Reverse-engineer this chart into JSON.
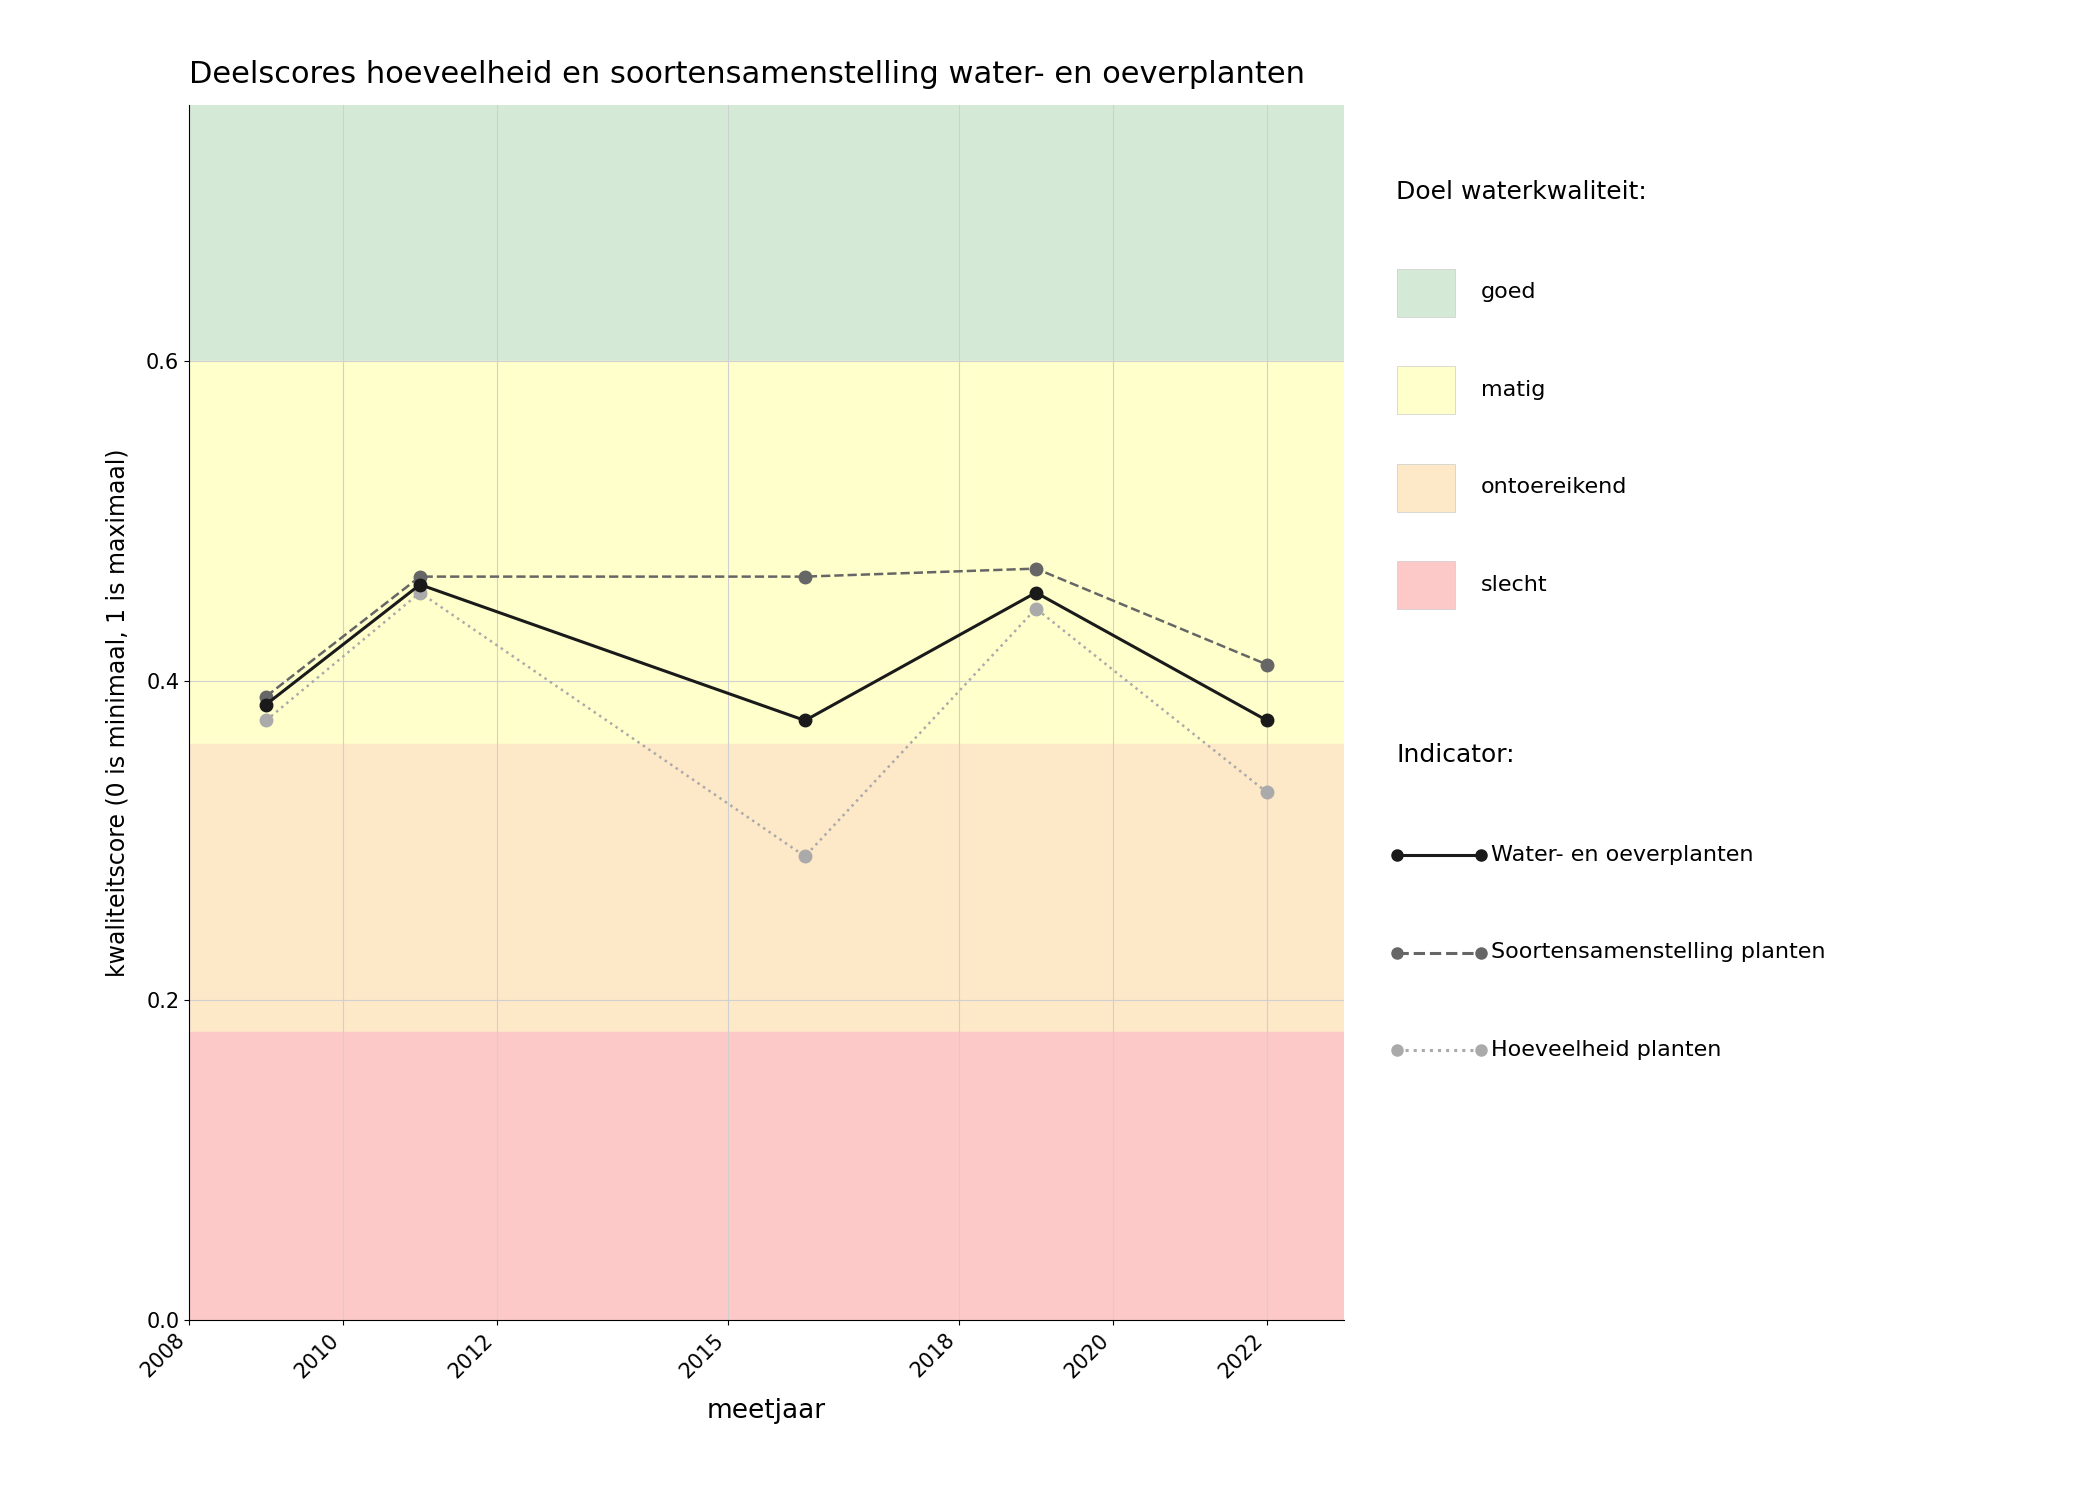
{
  "title": "Deelscores hoeveelheid en soortensamenstelling water- en oeverplanten",
  "xlabel": "meetjaar",
  "ylabel": "kwaliteitscore (0 is minimaal, 1 is maximaal)",
  "xlim": [
    2008,
    2023
  ],
  "ylim": [
    0.0,
    0.76
  ],
  "xticks": [
    2008,
    2010,
    2012,
    2015,
    2018,
    2020,
    2022
  ],
  "yticks": [
    0.0,
    0.2,
    0.4,
    0.6
  ],
  "bg_colors": {
    "goed": "#d5ead6",
    "matig": "#ffffcc",
    "ontoereikend": "#fde8c8",
    "slecht": "#fcc8c8"
  },
  "bg_ranges": {
    "goed": [
      0.6,
      0.76
    ],
    "matig": [
      0.36,
      0.6
    ],
    "ontoereikend": [
      0.18,
      0.36
    ],
    "slecht": [
      0.0,
      0.18
    ]
  },
  "water_oeverplanten": {
    "years": [
      2009,
      2011,
      2016,
      2019,
      2022
    ],
    "values": [
      0.385,
      0.46,
      0.375,
      0.455,
      0.375
    ],
    "color": "#1a1a1a",
    "linestyle": "solid",
    "linewidth": 2.2,
    "markersize": 9
  },
  "soortensamenstelling": {
    "years": [
      2009,
      2011,
      2016,
      2019,
      2022
    ],
    "values": [
      0.39,
      0.465,
      0.465,
      0.47,
      0.41
    ],
    "color": "#666666",
    "linestyle": "dashed",
    "linewidth": 1.8,
    "markersize": 9
  },
  "hoeveelheid": {
    "years": [
      2009,
      2011,
      2016,
      2019,
      2022
    ],
    "values": [
      0.375,
      0.455,
      0.29,
      0.445,
      0.33
    ],
    "color": "#aaaaaa",
    "linestyle": "dotted",
    "linewidth": 1.8,
    "markersize": 9
  },
  "legend_doel_title": "Doel waterkwaliteit:",
  "legend_indicator_title": "Indicator:",
  "legend_items_doel": [
    {
      "label": "goed",
      "color": "#d5ead6"
    },
    {
      "label": "matig",
      "color": "#ffffcc"
    },
    {
      "label": "ontoereikend",
      "color": "#fde8c8"
    },
    {
      "label": "slecht",
      "color": "#fcc8c8"
    }
  ],
  "legend_items_indicator": [
    {
      "label": "Water- en oeverplanten",
      "color": "#1a1a1a",
      "linestyle": "solid"
    },
    {
      "label": "Soortensamenstelling planten",
      "color": "#666666",
      "linestyle": "dashed"
    },
    {
      "label": "Hoeveelheid planten",
      "color": "#aaaaaa",
      "linestyle": "dotted"
    }
  ],
  "background_color": "#ffffff",
  "grid_color": "#d0d0d0"
}
